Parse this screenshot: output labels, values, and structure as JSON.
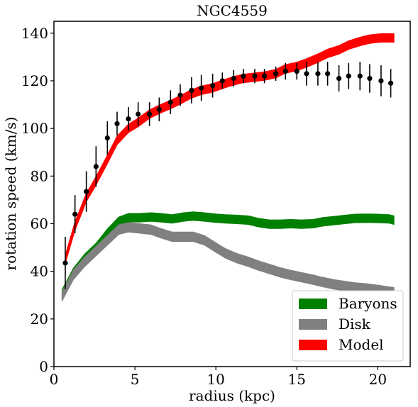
{
  "chart_data": {
    "type": "line",
    "title": "NGC4559",
    "xlabel": "radius (kpc)",
    "ylabel": "rotation speed (km/s)",
    "xlim": [
      0,
      22
    ],
    "ylim": [
      0,
      145
    ],
    "xticks": [
      0,
      5,
      10,
      15,
      20
    ],
    "yticks": [
      0,
      20,
      40,
      60,
      80,
      100,
      120,
      140
    ],
    "grid": false,
    "legend_position": "lower-right",
    "x": [
      0.7,
      1.3,
      2.0,
      2.6,
      3.3,
      3.9,
      4.6,
      5.2,
      5.9,
      6.5,
      7.2,
      7.8,
      8.5,
      9.1,
      9.8,
      10.4,
      11.1,
      11.7,
      12.4,
      13.0,
      13.7,
      14.3,
      15.0,
      15.6,
      16.3,
      16.9,
      17.6,
      18.2,
      18.9,
      19.5,
      20.2,
      20.8
    ],
    "observed": {
      "name": "",
      "color": "#000000",
      "values": [
        43.5,
        64,
        73.5,
        84,
        96,
        102,
        104,
        106,
        106,
        108,
        111,
        114,
        116,
        117,
        118,
        120,
        121,
        122,
        122,
        122,
        123,
        124,
        124,
        123,
        123,
        123,
        121,
        122,
        122,
        121,
        120,
        119
      ],
      "errors": [
        11,
        8,
        8.5,
        8.5,
        7,
        5,
        5,
        5,
        5,
        5,
        5,
        4.5,
        5.5,
        5.5,
        5,
        3.5,
        3.5,
        3,
        3,
        3,
        3,
        3.5,
        3.5,
        5,
        5,
        5,
        5.5,
        5.5,
        6,
        6,
        6.5,
        6
      ]
    },
    "series": [
      {
        "name": "Baryons",
        "color": "#008000",
        "x": [
          0.5,
          1.2,
          1.9,
          2.6,
          3.3,
          4.0,
          4.6,
          5.3,
          6.0,
          6.6,
          7.3,
          8.0,
          8.6,
          9.3,
          10.0,
          10.6,
          11.3,
          12.0,
          12.6,
          13.3,
          14.0,
          14.6,
          15.3,
          16.0,
          16.6,
          17.3,
          18.0,
          18.6,
          19.3,
          20.0,
          20.7,
          21.0
        ],
        "values": [
          30.5,
          39.5,
          45.5,
          50,
          56,
          61,
          62.5,
          62.5,
          62.8,
          62.5,
          62,
          62.8,
          63.2,
          62.8,
          62.3,
          62,
          61.8,
          61.5,
          60.5,
          59.8,
          59.8,
          60,
          59.8,
          60,
          60.8,
          61.3,
          61.8,
          62.2,
          62.3,
          62.2,
          62,
          61.5
        ],
        "half_width": 1.8
      },
      {
        "name": "Disk",
        "color": "#808080",
        "x": [
          0.5,
          1.2,
          1.9,
          2.6,
          3.3,
          4.0,
          4.6,
          5.3,
          6.0,
          6.6,
          7.3,
          8.0,
          8.6,
          9.3,
          10.0,
          10.6,
          11.3,
          12.0,
          12.6,
          13.3,
          14.0,
          14.6,
          15.3,
          16.0,
          16.6,
          17.3,
          18.0,
          18.6,
          19.3,
          20.0,
          20.7,
          21.0
        ],
        "values": [
          29.5,
          38.5,
          44,
          48.5,
          53,
          57.5,
          58.5,
          58,
          57.5,
          56,
          54.5,
          54.5,
          54.5,
          53,
          50,
          47.5,
          45.5,
          44,
          42.5,
          41,
          39.5,
          38.5,
          37.5,
          36.5,
          35.5,
          34.5,
          33.8,
          33.2,
          32.8,
          32.2,
          31.5,
          31.2
        ],
        "half_width": 2.0
      },
      {
        "name": "Model",
        "color": "#ff0000",
        "x": [
          0.7,
          1.3,
          2.0,
          2.6,
          3.3,
          3.9,
          4.6,
          5.2,
          5.9,
          6.5,
          7.2,
          7.8,
          8.5,
          9.1,
          9.8,
          10.4,
          11.1,
          11.7,
          12.4,
          13.0,
          13.7,
          14.3,
          15.0,
          15.6,
          16.3,
          16.9,
          17.6,
          18.2,
          18.9,
          19.5,
          20.2,
          21.0
        ],
        "values": [
          45,
          59,
          71,
          78,
          87,
          95,
          100,
          102.5,
          106,
          108,
          110,
          112,
          114.5,
          116,
          117,
          118.5,
          120,
          121,
          121.5,
          122,
          123,
          125,
          126,
          127.5,
          129.5,
          131.5,
          133,
          135,
          136.5,
          137.5,
          138,
          138
        ],
        "half_width": 1.8
      }
    ]
  }
}
